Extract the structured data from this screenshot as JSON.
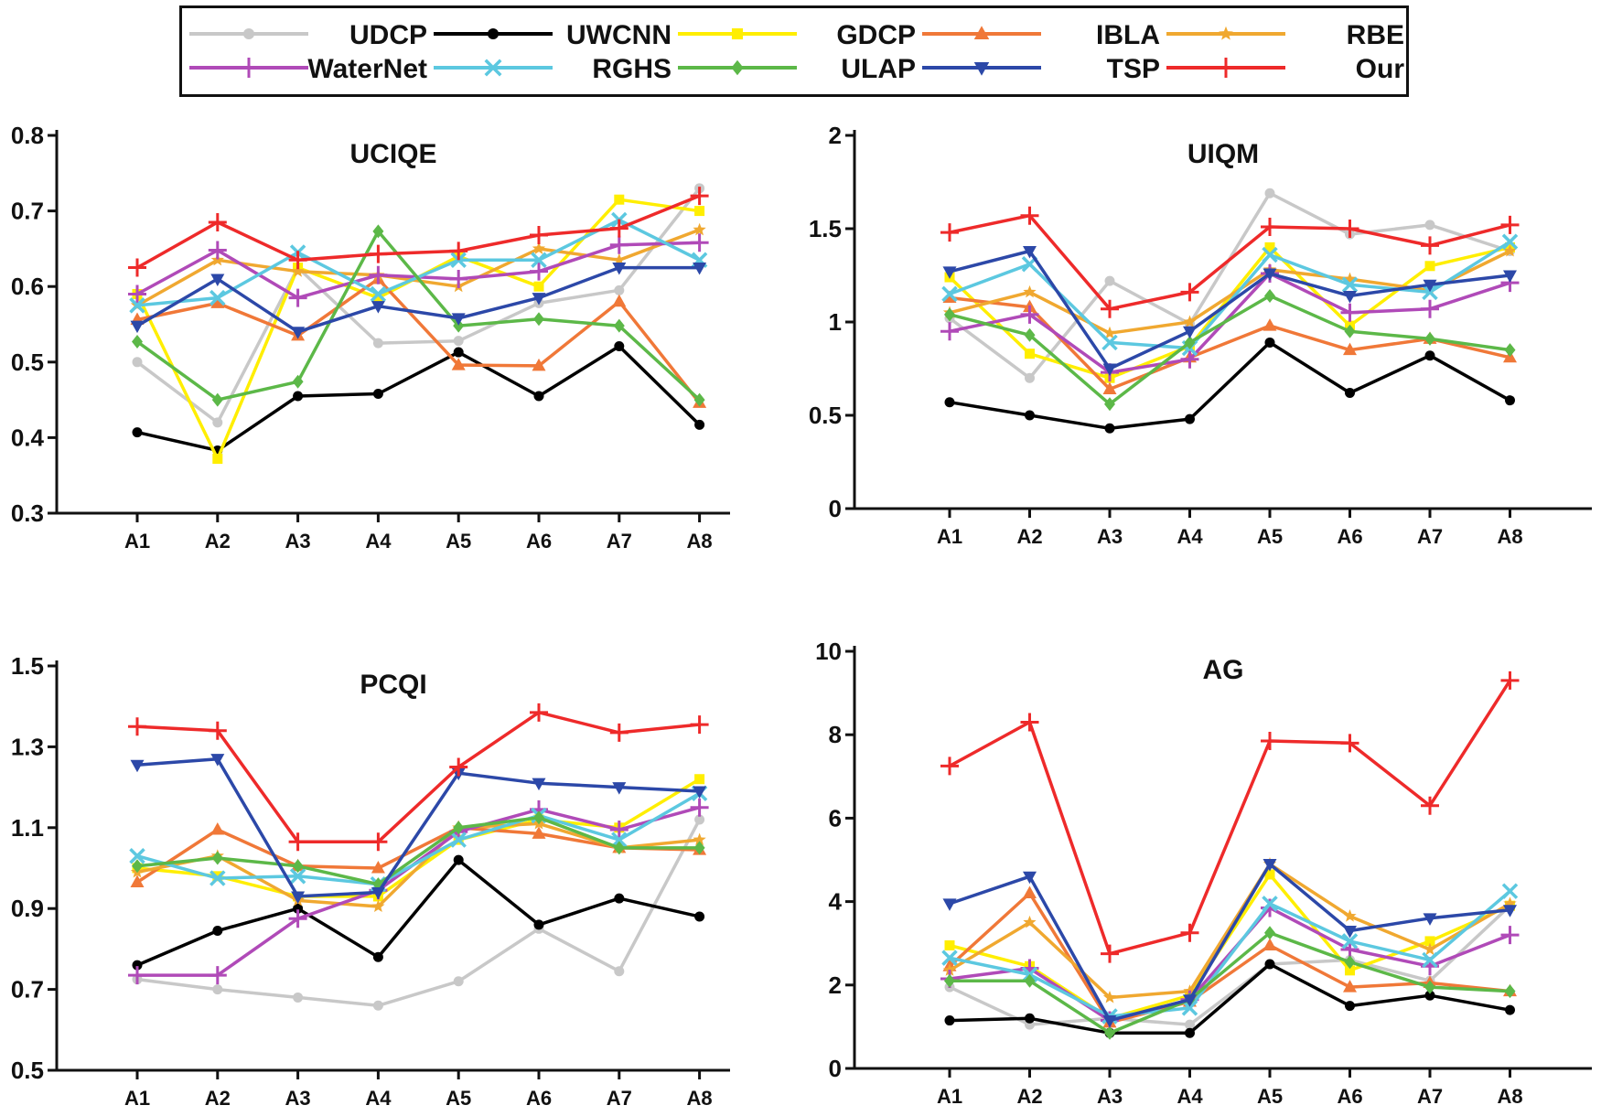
{
  "methods": [
    {
      "name": "UDCP",
      "color": "#c8c8c8",
      "marker": "circle"
    },
    {
      "name": "UWCNN",
      "color": "#000000",
      "marker": "circle"
    },
    {
      "name": "GDCP",
      "color": "#ffee00",
      "marker": "square"
    },
    {
      "name": "IBLA",
      "color": "#f07838",
      "marker": "triangle"
    },
    {
      "name": "RBE",
      "color": "#f0a830",
      "marker": "star"
    },
    {
      "name": "WaterNet",
      "color": "#b04ab8",
      "marker": "plus"
    },
    {
      "name": "RGHS",
      "color": "#5cc8e0",
      "marker": "x"
    },
    {
      "name": "ULAP",
      "color": "#5cb848",
      "marker": "diamond"
    },
    {
      "name": "TSP",
      "color": "#2c48a8",
      "marker": "triangle-down"
    },
    {
      "name": "Our",
      "color": "#ee2a2a",
      "marker": "plus"
    }
  ],
  "chart_data": [
    {
      "type": "line",
      "title": "UCIQE",
      "categories": [
        "A1",
        "A2",
        "A3",
        "A4",
        "A5",
        "A6",
        "A7",
        "A8"
      ],
      "ylim": [
        0.3,
        0.8
      ],
      "yticks": [
        "0.3",
        "0.4",
        "0.5",
        "0.6",
        "0.7",
        "0.8"
      ],
      "series": [
        {
          "name": "UDCP",
          "values": [
            0.5,
            0.42,
            0.625,
            0.525,
            0.528,
            0.578,
            0.595,
            0.73
          ]
        },
        {
          "name": "UWCNN",
          "values": [
            0.407,
            0.383,
            0.455,
            0.458,
            0.513,
            0.455,
            0.521,
            0.417
          ]
        },
        {
          "name": "GDCP",
          "values": [
            0.59,
            0.372,
            0.625,
            0.585,
            0.64,
            0.6,
            0.715,
            0.7
          ]
        },
        {
          "name": "IBLA",
          "values": [
            0.556,
            0.578,
            0.535,
            0.61,
            0.496,
            0.495,
            0.58,
            0.446
          ]
        },
        {
          "name": "RBE",
          "values": [
            0.575,
            0.635,
            0.62,
            0.615,
            0.6,
            0.65,
            0.635,
            0.675
          ]
        },
        {
          "name": "WaterNet",
          "values": [
            0.59,
            0.648,
            0.585,
            0.615,
            0.61,
            0.62,
            0.655,
            0.658
          ]
        },
        {
          "name": "RGHS",
          "values": [
            0.575,
            0.585,
            0.645,
            0.59,
            0.635,
            0.635,
            0.688,
            0.635
          ]
        },
        {
          "name": "ULAP",
          "values": [
            0.527,
            0.45,
            0.474,
            0.673,
            0.548,
            0.557,
            0.548,
            0.45
          ]
        },
        {
          "name": "TSP",
          "values": [
            0.548,
            0.61,
            0.54,
            0.574,
            0.558,
            0.585,
            0.625,
            0.625
          ]
        },
        {
          "name": "Our",
          "values": [
            0.625,
            0.685,
            0.635,
            0.643,
            0.647,
            0.668,
            0.677,
            0.72
          ]
        }
      ]
    },
    {
      "type": "line",
      "title": "UIQM",
      "categories": [
        "A1",
        "A2",
        "A3",
        "A4",
        "A5",
        "A6",
        "A7",
        "A8"
      ],
      "ylim": [
        0,
        2
      ],
      "yticks": [
        "0",
        "0.5",
        "1",
        "1.5",
        "2"
      ],
      "series": [
        {
          "name": "UDCP",
          "values": [
            1.02,
            0.7,
            1.22,
            0.99,
            1.69,
            1.47,
            1.52,
            1.38
          ]
        },
        {
          "name": "UWCNN",
          "values": [
            0.57,
            0.5,
            0.43,
            0.48,
            0.89,
            0.62,
            0.82,
            0.58
          ]
        },
        {
          "name": "GDCP",
          "values": [
            1.24,
            0.83,
            0.7,
            0.87,
            1.4,
            0.98,
            1.3,
            1.4
          ]
        },
        {
          "name": "IBLA",
          "values": [
            1.13,
            1.08,
            0.64,
            0.81,
            0.98,
            0.85,
            0.91,
            0.81
          ]
        },
        {
          "name": "RBE",
          "values": [
            1.05,
            1.16,
            0.94,
            1.0,
            1.28,
            1.23,
            1.17,
            1.38
          ]
        },
        {
          "name": "WaterNet",
          "values": [
            0.95,
            1.04,
            0.73,
            0.8,
            1.26,
            1.05,
            1.07,
            1.21
          ]
        },
        {
          "name": "RGHS",
          "values": [
            1.15,
            1.31,
            0.89,
            0.86,
            1.36,
            1.2,
            1.16,
            1.43
          ]
        },
        {
          "name": "ULAP",
          "values": [
            1.04,
            0.93,
            0.56,
            0.89,
            1.14,
            0.95,
            0.91,
            0.85
          ]
        },
        {
          "name": "TSP",
          "values": [
            1.27,
            1.38,
            0.75,
            0.95,
            1.26,
            1.14,
            1.2,
            1.25
          ]
        },
        {
          "name": "Our",
          "values": [
            1.48,
            1.57,
            1.07,
            1.16,
            1.51,
            1.5,
            1.41,
            1.52
          ]
        }
      ]
    },
    {
      "type": "line",
      "title": "PCQI",
      "categories": [
        "A1",
        "A2",
        "A3",
        "A4",
        "A5",
        "A6",
        "A7",
        "A8"
      ],
      "ylim": [
        0.5,
        1.5
      ],
      "yticks": [
        "0.5",
        "0.7",
        "0.9",
        "1.1",
        "1.3",
        "1.5"
      ],
      "series": [
        {
          "name": "UDCP",
          "values": [
            0.725,
            0.7,
            0.68,
            0.66,
            0.72,
            0.85,
            0.745,
            1.12
          ]
        },
        {
          "name": "UWCNN",
          "values": [
            0.76,
            0.845,
            0.9,
            0.78,
            1.02,
            0.86,
            0.925,
            0.88
          ]
        },
        {
          "name": "GDCP",
          "values": [
            1.0,
            0.98,
            0.93,
            0.93,
            1.07,
            1.12,
            1.1,
            1.22
          ]
        },
        {
          "name": "IBLA",
          "values": [
            0.965,
            1.095,
            1.005,
            1.0,
            1.1,
            1.085,
            1.05,
            1.045
          ]
        },
        {
          "name": "RBE",
          "values": [
            0.99,
            1.03,
            0.92,
            0.905,
            1.1,
            1.11,
            1.05,
            1.07
          ]
        },
        {
          "name": "WaterNet",
          "values": [
            0.735,
            0.735,
            0.875,
            0.945,
            1.09,
            1.145,
            1.095,
            1.15
          ]
        },
        {
          "name": "RGHS",
          "values": [
            1.03,
            0.975,
            0.98,
            0.96,
            1.07,
            1.13,
            1.07,
            1.185
          ]
        },
        {
          "name": "ULAP",
          "values": [
            1.005,
            1.025,
            1.005,
            0.96,
            1.1,
            1.125,
            1.05,
            1.05
          ]
        },
        {
          "name": "TSP",
          "values": [
            1.255,
            1.27,
            0.93,
            0.94,
            1.235,
            1.21,
            1.2,
            1.19
          ]
        },
        {
          "name": "Our",
          "values": [
            1.35,
            1.34,
            1.065,
            1.065,
            1.25,
            1.385,
            1.335,
            1.355
          ]
        }
      ]
    },
    {
      "type": "line",
      "title": "AG",
      "categories": [
        "A1",
        "A2",
        "A3",
        "A4",
        "A5",
        "A6",
        "A7",
        "A8"
      ],
      "ylim": [
        0,
        10
      ],
      "yticks": [
        "0",
        "2",
        "4",
        "6",
        "8",
        "10"
      ],
      "series": [
        {
          "name": "UDCP",
          "values": [
            1.95,
            1.05,
            1.2,
            1.05,
            2.5,
            2.6,
            2.1,
            3.9
          ]
        },
        {
          "name": "UWCNN",
          "values": [
            1.15,
            1.2,
            0.85,
            0.85,
            2.5,
            1.5,
            1.75,
            1.4
          ]
        },
        {
          "name": "GDCP",
          "values": [
            2.95,
            2.45,
            1.2,
            1.75,
            4.65,
            2.35,
            3.05,
            3.9
          ]
        },
        {
          "name": "IBLA",
          "values": [
            2.45,
            4.2,
            1.1,
            1.6,
            2.95,
            1.95,
            2.05,
            1.85
          ]
        },
        {
          "name": "RBE",
          "values": [
            2.35,
            3.5,
            1.7,
            1.85,
            4.9,
            3.65,
            2.85,
            3.95
          ]
        },
        {
          "name": "WaterNet",
          "values": [
            2.15,
            2.4,
            1.15,
            1.65,
            3.85,
            2.85,
            2.45,
            3.2
          ]
        },
        {
          "name": "RGHS",
          "values": [
            2.65,
            2.25,
            1.25,
            1.45,
            3.95,
            3.05,
            2.6,
            4.25
          ]
        },
        {
          "name": "ULAP",
          "values": [
            2.1,
            2.1,
            0.85,
            1.65,
            3.25,
            2.55,
            1.95,
            1.85
          ]
        },
        {
          "name": "TSP",
          "values": [
            3.95,
            4.6,
            1.15,
            1.65,
            4.9,
            3.3,
            3.6,
            3.8
          ]
        },
        {
          "name": "Our",
          "values": [
            7.25,
            8.3,
            2.75,
            3.25,
            7.85,
            7.8,
            6.3,
            9.3
          ]
        }
      ]
    }
  ]
}
